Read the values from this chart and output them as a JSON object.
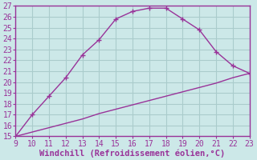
{
  "xlabel": "Windchill (Refroidissement éolien,°C)",
  "x_upper": [
    9,
    10,
    11,
    12,
    13,
    14,
    15,
    16,
    17,
    18,
    19,
    20,
    21,
    22,
    23
  ],
  "y_upper": [
    15.0,
    17.0,
    18.7,
    20.4,
    22.5,
    23.9,
    25.8,
    26.5,
    26.8,
    26.8,
    25.8,
    24.8,
    22.8,
    21.5,
    20.8
  ],
  "x_lower": [
    9,
    10,
    11,
    12,
    13,
    14,
    15,
    16,
    17,
    18,
    19,
    20,
    21,
    22,
    23
  ],
  "y_lower": [
    15.0,
    15.4,
    15.8,
    16.2,
    16.6,
    17.1,
    17.5,
    17.9,
    18.3,
    18.7,
    19.1,
    19.5,
    19.9,
    20.4,
    20.8
  ],
  "line_color": "#993399",
  "bg_color": "#cce8e8",
  "grid_color": "#aacccc",
  "label_color": "#993399",
  "tick_color": "#993399",
  "xlim": [
    9,
    23
  ],
  "ylim": [
    15,
    27
  ],
  "xticks": [
    9,
    10,
    11,
    12,
    13,
    14,
    15,
    16,
    17,
    18,
    19,
    20,
    21,
    22,
    23
  ],
  "yticks": [
    15,
    16,
    17,
    18,
    19,
    20,
    21,
    22,
    23,
    24,
    25,
    26,
    27
  ],
  "xlabel_fontsize": 7.5,
  "tick_fontsize": 7.0
}
